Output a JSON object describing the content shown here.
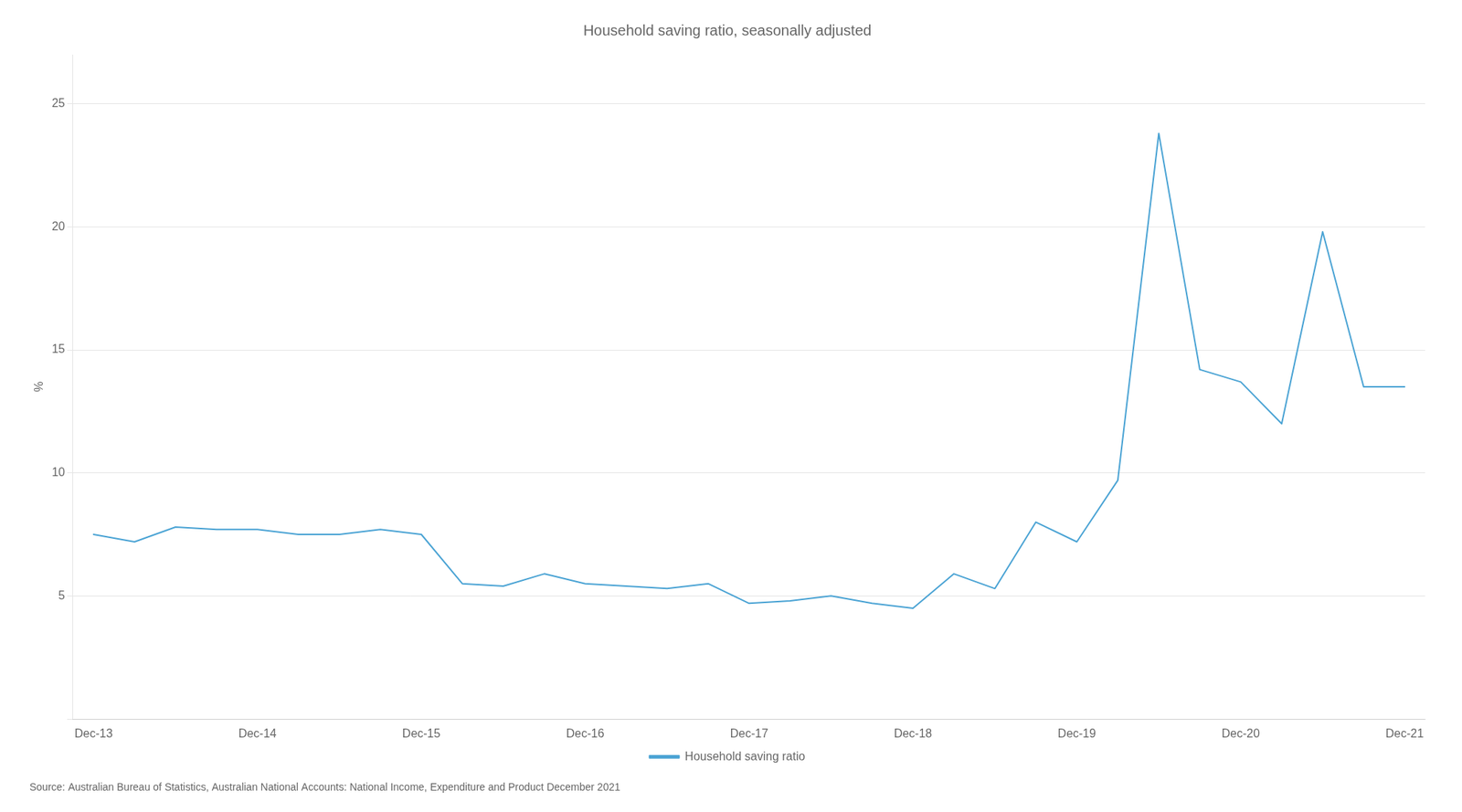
{
  "chart_data": {
    "type": "line",
    "title": "Household saving ratio, seasonally adjusted",
    "ylabel": "%",
    "annotations": [
      "Source: Australian Bureau of Statistics, Australian National Accounts: National Income, Expenditure and Product December 2021"
    ],
    "categories": [
      "Dec-13",
      null,
      null,
      null,
      "Dec-14",
      null,
      null,
      null,
      "Dec-15",
      null,
      null,
      null,
      "Dec-16",
      null,
      null,
      null,
      "Dec-17",
      null,
      null,
      null,
      "Dec-18",
      null,
      null,
      null,
      "Dec-19",
      null,
      null,
      null,
      "Dec-20",
      null,
      null,
      null,
      "Dec-21"
    ],
    "series": [
      {
        "name": "Household saving ratio",
        "color": "#4AA3D4",
        "values": [
          7.5,
          7.2,
          7.8,
          7.7,
          7.7,
          7.5,
          7.5,
          7.7,
          7.5,
          5.5,
          5.4,
          5.9,
          5.5,
          5.4,
          5.3,
          5.5,
          4.7,
          4.8,
          5.0,
          4.7,
          4.5,
          5.9,
          5.3,
          8.0,
          7.2,
          9.7,
          23.8,
          14.2,
          13.7,
          12.0,
          19.8,
          13.5,
          13.5
        ]
      }
    ],
    "ylim": [
      0,
      27
    ],
    "yticks": [
      {
        "value": 0,
        "label": ""
      },
      5,
      10,
      15,
      20,
      25
    ],
    "grid": "y",
    "legend": "bottom"
  }
}
